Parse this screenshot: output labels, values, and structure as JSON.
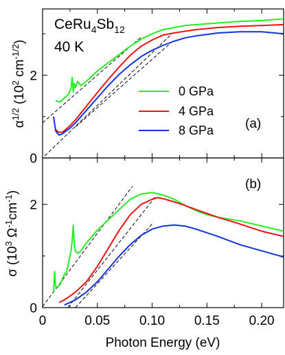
{
  "figure": {
    "compound": "CeRu4Sb12",
    "temperature": "40 K",
    "xlabel": "Photon Energy (eV)",
    "x_tick_labels": [
      "0",
      "0.05",
      "0.10",
      "0.15",
      "0.20"
    ]
  },
  "chart_data": [
    {
      "type": "line",
      "panel_label": "(a)",
      "ylabel": "α^1/2 (10^2 cm^-1/2)",
      "xlim": [
        0,
        0.22
      ],
      "ylim": [
        0,
        3.6
      ],
      "y_tick_labels": [
        "0",
        "2"
      ],
      "legend_position": "center-right",
      "grid": false,
      "series": [
        {
          "name": "0 GPa",
          "color": "#22ee22",
          "x": [
            0.012,
            0.016,
            0.018,
            0.02,
            0.022,
            0.024,
            0.026,
            0.027,
            0.028,
            0.029,
            0.03,
            0.032,
            0.035,
            0.04,
            0.05,
            0.06,
            0.07,
            0.08,
            0.09,
            0.1,
            0.11,
            0.12,
            0.13,
            0.14,
            0.16,
            0.18,
            0.2,
            0.22
          ],
          "y": [
            1.38,
            1.35,
            1.4,
            1.45,
            1.5,
            1.55,
            1.7,
            1.95,
            1.6,
            1.8,
            1.7,
            1.85,
            1.75,
            1.85,
            2.1,
            2.3,
            2.5,
            2.7,
            2.87,
            3.0,
            3.1,
            3.15,
            3.2,
            3.22,
            3.26,
            3.3,
            3.32,
            3.36
          ]
        },
        {
          "name": "4 GPa",
          "color": "#ee1111",
          "x": [
            0.012,
            0.015,
            0.018,
            0.02,
            0.025,
            0.03,
            0.04,
            0.05,
            0.06,
            0.07,
            0.08,
            0.09,
            0.1,
            0.11,
            0.12,
            0.14,
            0.16,
            0.18,
            0.2,
            0.22
          ],
          "y": [
            0.68,
            0.62,
            0.62,
            0.66,
            0.78,
            0.92,
            1.25,
            1.58,
            1.9,
            2.2,
            2.48,
            2.7,
            2.85,
            2.97,
            3.02,
            3.1,
            3.15,
            3.18,
            3.2,
            3.22
          ]
        },
        {
          "name": "8 GPa",
          "color": "#1133dd",
          "x": [
            0.01,
            0.012,
            0.015,
            0.018,
            0.02,
            0.025,
            0.03,
            0.04,
            0.05,
            0.06,
            0.07,
            0.08,
            0.09,
            0.1,
            0.11,
            0.12,
            0.13,
            0.14,
            0.16,
            0.18,
            0.2,
            0.22
          ],
          "y": [
            1.0,
            0.65,
            0.55,
            0.58,
            0.62,
            0.72,
            0.85,
            1.15,
            1.45,
            1.75,
            2.02,
            2.25,
            2.45,
            2.6,
            2.72,
            2.82,
            2.9,
            2.95,
            3.02,
            3.05,
            3.05,
            3.0
          ]
        }
      ],
      "fit_lines": [
        {
          "x": [
            0,
            0.09
          ],
          "y": [
            0.85,
            2.92
          ]
        },
        {
          "x": [
            0.002,
            0.118
          ],
          "y": [
            0.05,
            3.0
          ]
        },
        {
          "x": [
            0.03,
            0.12
          ],
          "y": [
            0.75,
            2.85
          ]
        }
      ]
    },
    {
      "type": "line",
      "panel_label": "(b)",
      "ylabel": "σ (10^3 Ω^-1cm^-1)",
      "xlim": [
        0,
        0.22
      ],
      "ylim": [
        0,
        2.9
      ],
      "y_tick_labels": [
        "0",
        "2"
      ],
      "grid": false,
      "series": [
        {
          "name": "0 GPa",
          "color": "#22ee22",
          "x": [
            0.01,
            0.011,
            0.012,
            0.014,
            0.016,
            0.018,
            0.02,
            0.022,
            0.024,
            0.026,
            0.027,
            0.028,
            0.029,
            0.03,
            0.032,
            0.035,
            0.04,
            0.05,
            0.06,
            0.07,
            0.08,
            0.09,
            0.1,
            0.11,
            0.12,
            0.13,
            0.14,
            0.15,
            0.16,
            0.18,
            0.2,
            0.22
          ],
          "y": [
            0.3,
            0.7,
            0.4,
            0.4,
            0.45,
            0.55,
            0.65,
            0.7,
            0.9,
            1.1,
            1.3,
            1.6,
            1.2,
            1.1,
            1.05,
            1.1,
            1.25,
            1.5,
            1.7,
            1.9,
            2.1,
            2.2,
            2.23,
            2.18,
            2.1,
            1.98,
            1.88,
            1.8,
            1.75,
            1.68,
            1.58,
            1.48
          ]
        },
        {
          "name": "4 GPa",
          "color": "#ee1111",
          "x": [
            0.015,
            0.02,
            0.03,
            0.04,
            0.05,
            0.06,
            0.07,
            0.08,
            0.09,
            0.1,
            0.105,
            0.11,
            0.12,
            0.13,
            0.14,
            0.16,
            0.18,
            0.2,
            0.22
          ],
          "y": [
            0.1,
            0.15,
            0.3,
            0.5,
            0.8,
            1.15,
            1.5,
            1.8,
            2.0,
            2.1,
            2.13,
            2.11,
            2.05,
            1.98,
            1.9,
            1.75,
            1.62,
            1.48,
            1.38
          ]
        },
        {
          "name": "8 GPa",
          "color": "#1133dd",
          "x": [
            0.02,
            0.03,
            0.04,
            0.05,
            0.06,
            0.07,
            0.08,
            0.09,
            0.1,
            0.11,
            0.12,
            0.13,
            0.14,
            0.16,
            0.18,
            0.2,
            0.22
          ],
          "y": [
            0.05,
            0.15,
            0.3,
            0.5,
            0.75,
            1.0,
            1.22,
            1.4,
            1.52,
            1.58,
            1.6,
            1.58,
            1.52,
            1.38,
            1.22,
            1.1,
            0.98
          ]
        }
      ],
      "fit_lines": [
        {
          "x": [
            0,
            0.082
          ],
          "y": [
            0.02,
            2.35
          ]
        },
        {
          "x": [
            0.023,
            0.103
          ],
          "y": [
            0.0,
            2.15
          ]
        },
        {
          "x": [
            0.03,
            0.1
          ],
          "y": [
            0.0,
            1.62
          ]
        }
      ]
    }
  ]
}
